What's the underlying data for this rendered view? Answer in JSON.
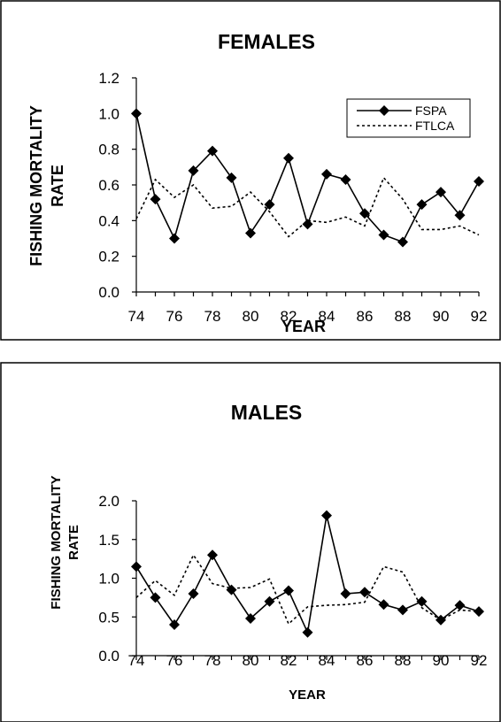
{
  "chart_data": [
    {
      "type": "line",
      "title": "FEMALES",
      "xlabel": "YEAR",
      "ylabel_line1": "FISHING MORTALITY",
      "ylabel_line2": "RATE",
      "x": [
        74,
        75,
        76,
        77,
        78,
        79,
        80,
        81,
        82,
        83,
        84,
        85,
        86,
        87,
        88,
        89,
        90,
        91,
        92
      ],
      "xticks": [
        "74",
        "76",
        "78",
        "80",
        "82",
        "84",
        "86",
        "88",
        "90",
        "92"
      ],
      "yticks": [
        "0.0",
        "0.2",
        "0.4",
        "0.6",
        "0.8",
        "1.0",
        "1.2"
      ],
      "xlim": [
        74,
        92
      ],
      "ylim": [
        0,
        1.2
      ],
      "legend_position": "top-right",
      "series": [
        {
          "name": "FSPA",
          "style": "solid-diamond",
          "values": [
            1.0,
            0.52,
            0.3,
            0.68,
            0.79,
            0.64,
            0.33,
            0.49,
            0.75,
            0.38,
            0.66,
            0.63,
            0.44,
            0.32,
            0.28,
            0.49,
            0.56,
            0.43,
            0.62
          ]
        },
        {
          "name": "FTLCA",
          "style": "dotted",
          "values": [
            0.41,
            0.63,
            0.53,
            0.6,
            0.47,
            0.48,
            0.56,
            0.45,
            0.31,
            0.4,
            0.39,
            0.42,
            0.37,
            0.64,
            0.52,
            0.35,
            0.35,
            0.37,
            0.32
          ]
        }
      ]
    },
    {
      "type": "line",
      "title": "MALES",
      "xlabel": "YEAR",
      "ylabel_line1": "FISHING MORTALITY",
      "ylabel_line2": "RATE",
      "x": [
        74,
        75,
        76,
        77,
        78,
        79,
        80,
        81,
        82,
        83,
        84,
        85,
        86,
        87,
        88,
        89,
        90,
        91,
        92
      ],
      "xticks": [
        "74",
        "76",
        "78",
        "80",
        "82",
        "84",
        "86",
        "88",
        "90",
        "92"
      ],
      "yticks": [
        "0.0",
        "0.5",
        "1.0",
        "1.5",
        "2.0"
      ],
      "xlim": [
        74,
        92
      ],
      "ylim": [
        0,
        2.0
      ],
      "series": [
        {
          "name": "FSPA",
          "style": "solid-diamond",
          "values": [
            1.15,
            0.75,
            0.4,
            0.8,
            1.3,
            0.85,
            0.48,
            0.7,
            0.84,
            0.3,
            1.81,
            0.8,
            0.82,
            0.66,
            0.59,
            0.7,
            0.46,
            0.65,
            0.57
          ]
        },
        {
          "name": "FTLCA",
          "style": "dotted",
          "values": [
            0.75,
            0.97,
            0.78,
            1.3,
            0.93,
            0.87,
            0.88,
            0.99,
            0.41,
            0.63,
            0.65,
            0.66,
            0.69,
            1.15,
            1.08,
            0.62,
            0.46,
            0.59,
            0.57
          ]
        }
      ]
    }
  ]
}
